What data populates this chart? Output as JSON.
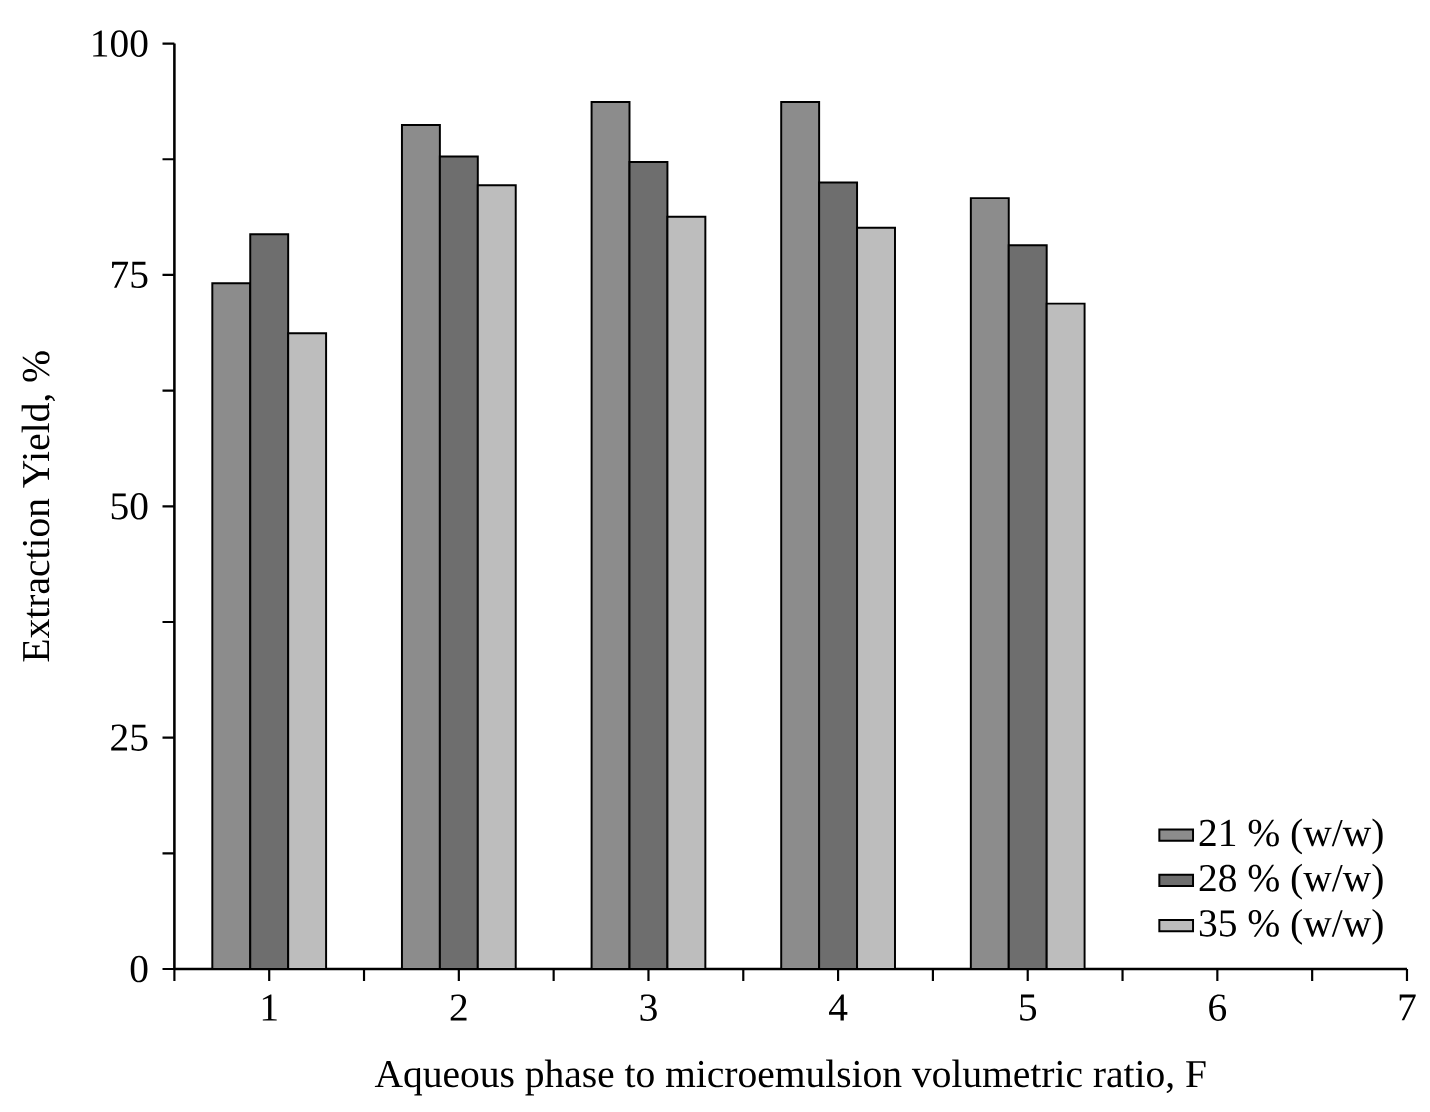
{
  "chart_data": {
    "type": "bar",
    "xlabel": "Aqueous phase to microemulsion volumetric ratio, F",
    "ylabel": "Extraction Yield, %",
    "x": [
      1,
      2,
      3,
      4,
      5
    ],
    "series": [
      {
        "name": "21 % (w/w)",
        "color": "#8c8c8c",
        "values": [
          74.1,
          91.2,
          93.7,
          93.7,
          83.3
        ]
      },
      {
        "name": "28 % (w/w)",
        "color": "#6e6e6e",
        "values": [
          79.4,
          87.8,
          87.2,
          85.0,
          78.2
        ]
      },
      {
        "name": "35 % (w/w)",
        "color": "#bdbdbd",
        "values": [
          68.7,
          84.7,
          81.3,
          80.1,
          71.9
        ]
      }
    ],
    "xlim": [
      0.5,
      7
    ],
    "xticks": [
      {
        "value": 0.5,
        "label": null
      },
      1,
      {
        "value": 1.5,
        "label": null
      },
      2,
      {
        "value": 2.5,
        "label": null
      },
      3,
      {
        "value": 3.5,
        "label": null
      },
      4,
      {
        "value": 4.5,
        "label": null
      },
      5,
      {
        "value": 5.5,
        "label": null
      },
      6,
      {
        "value": 6.5,
        "label": null
      },
      7
    ],
    "ylim": [
      0,
      100
    ],
    "yticks": [
      0,
      {
        "value": 12.5,
        "label": null
      },
      25,
      {
        "value": 37.5,
        "label": null
      },
      50,
      {
        "value": 62.5,
        "label": null
      },
      75,
      {
        "value": 87.5,
        "label": null
      },
      100
    ],
    "grid": false,
    "legend": "bottom right"
  }
}
